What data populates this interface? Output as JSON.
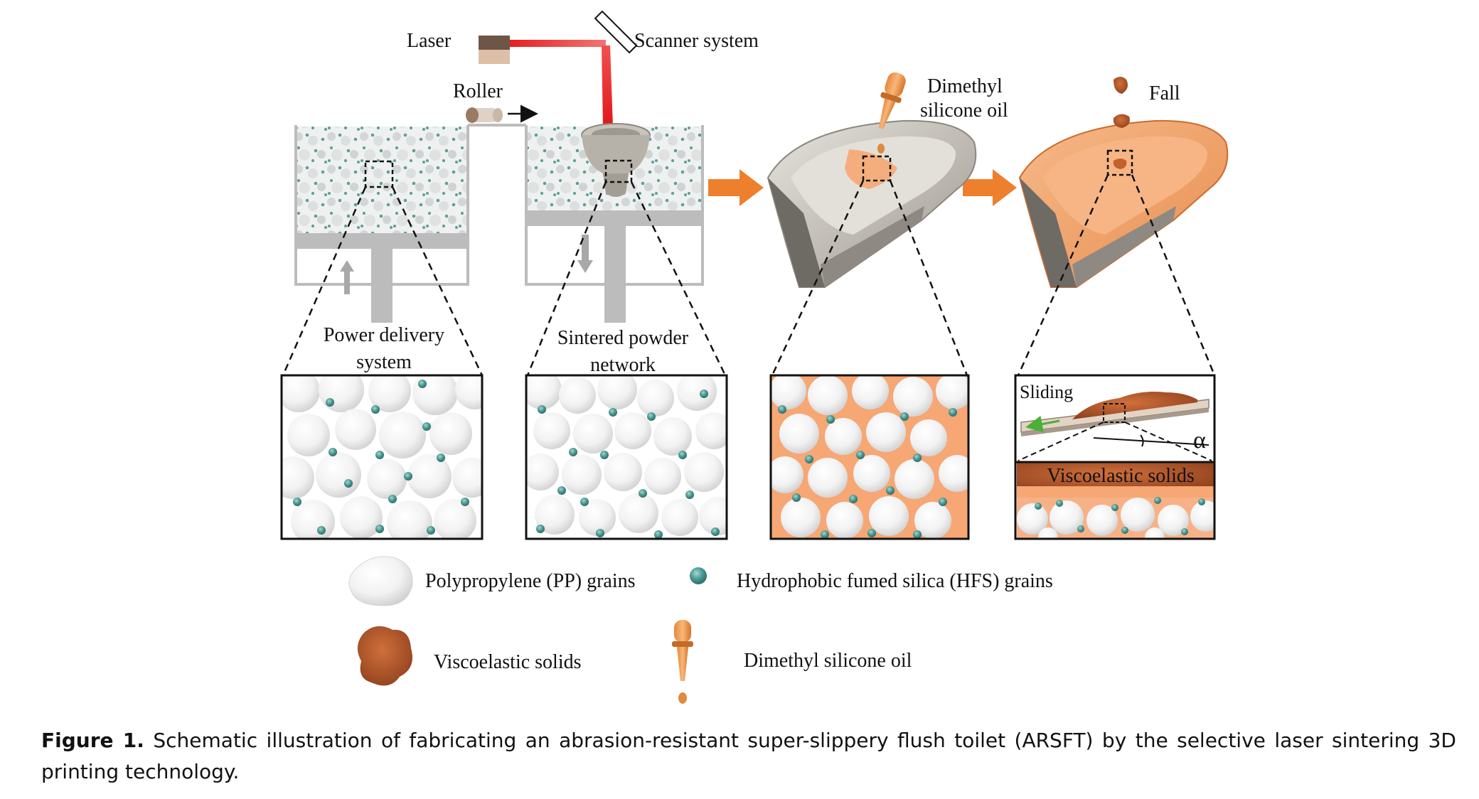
{
  "labels": {
    "laser": "Laser",
    "scanner": "Scanner system",
    "roller": "Roller",
    "oil_line1": "Dimethyl",
    "oil_line2": "silicone oil",
    "fall": "Fall",
    "delivery_line1": "Power delivery",
    "delivery_line2": "system",
    "sintered_line1": "Sintered powder",
    "sintered_line2": "network",
    "sliding": "Sliding",
    "alpha": "α",
    "viscoelastic_band": "Viscoelastic solids"
  },
  "legend": {
    "pp": "Polypropylene (PP) grains",
    "hfs": "Hydrophobic fumed silica (HFS) grains",
    "visco": "Viscoelastic solids",
    "oil": "Dimethyl silicone oil"
  },
  "caption": {
    "prefix": "Figure 1.",
    "text": " Schematic illustration of fabricating an abrasion-resistant super-slippery flush toilet (ARSFT) by the selective laser sintering 3D printing technology."
  },
  "colors": {
    "orange_arrow": "#ee7f2d",
    "laser_red": "#e01818",
    "hfs_teal": "#3f8a86",
    "oil_orange": "#f3a96d",
    "visco_brown": "#b5572a",
    "machine_gray": "#bdbdbd"
  }
}
